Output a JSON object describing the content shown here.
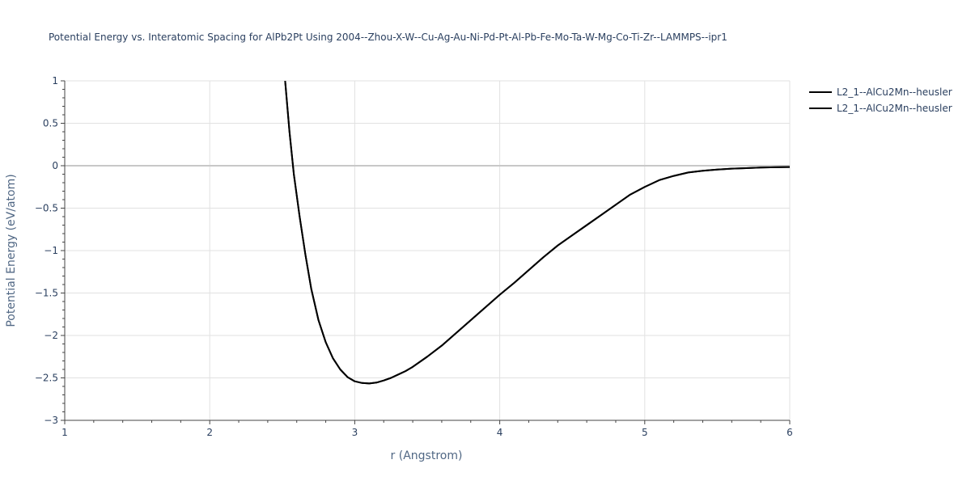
{
  "chart_data": {
    "type": "line",
    "title": "Potential Energy vs. Interatomic Spacing for AlPb2Pt Using 2004--Zhou-X-W--Cu-Ag-Au-Ni-Pd-Pt-Al-Pb-Fe-Mo-Ta-W-Mg-Co-Ti-Zr--LAMMPS--ipr1",
    "xlabel": "r (Angstrom)",
    "ylabel": "Potential Energy (eV/atom)",
    "xlim": [
      1,
      6
    ],
    "ylim": [
      -3,
      1
    ],
    "x_ticks": [
      1,
      2,
      3,
      4,
      5,
      6
    ],
    "x_tick_labels": [
      "1",
      "2",
      "3",
      "4",
      "5",
      "6"
    ],
    "y_ticks": [
      1,
      0.5,
      0,
      -0.5,
      -1,
      -1.5,
      -2,
      -2.5,
      -3
    ],
    "y_tick_labels": [
      "1",
      "0.5",
      "0",
      "−0.5",
      "−1",
      "−1.5",
      "−2",
      "−2.5",
      "−3"
    ],
    "grid": true,
    "legend_position": "top-right",
    "series": [
      {
        "name": "L2_1--AlCu2Mn--heusler",
        "color": "#000000",
        "x": [
          2.52,
          2.55,
          2.58,
          2.62,
          2.66,
          2.7,
          2.75,
          2.8,
          2.85,
          2.9,
          2.95,
          3.0,
          3.05,
          3.1,
          3.15,
          3.2,
          3.25,
          3.3,
          3.35,
          3.4,
          3.5,
          3.6,
          3.7,
          3.8,
          3.9,
          4.0,
          4.1,
          4.2,
          4.3,
          4.4,
          4.5,
          4.6,
          4.7,
          4.8,
          4.9,
          5.0,
          5.1,
          5.2,
          5.3,
          5.4,
          5.5,
          5.6,
          5.7,
          5.8,
          5.9,
          6.0
        ],
        "y": [
          1.0,
          0.4,
          -0.1,
          -0.6,
          -1.05,
          -1.45,
          -1.82,
          -2.08,
          -2.27,
          -2.4,
          -2.49,
          -2.54,
          -2.56,
          -2.565,
          -2.555,
          -2.53,
          -2.5,
          -2.46,
          -2.42,
          -2.37,
          -2.25,
          -2.12,
          -1.97,
          -1.82,
          -1.67,
          -1.52,
          -1.38,
          -1.23,
          -1.08,
          -0.94,
          -0.82,
          -0.7,
          -0.58,
          -0.46,
          -0.34,
          -0.25,
          -0.17,
          -0.12,
          -0.08,
          -0.06,
          -0.045,
          -0.035,
          -0.028,
          -0.022,
          -0.018,
          -0.015
        ]
      },
      {
        "name": "L2_1--AlCu2Mn--heusler",
        "color": "#000000",
        "x": [
          2.52,
          2.55,
          2.58,
          2.62,
          2.66,
          2.7,
          2.75,
          2.8,
          2.85,
          2.9,
          2.95,
          3.0,
          3.05,
          3.1,
          3.15,
          3.2,
          3.25,
          3.3,
          3.35,
          3.4,
          3.5,
          3.6,
          3.7,
          3.8,
          3.9,
          4.0,
          4.1,
          4.2,
          4.3,
          4.4,
          4.5,
          4.6,
          4.7,
          4.8,
          4.9,
          5.0,
          5.1,
          5.2,
          5.3,
          5.4,
          5.5,
          5.6,
          5.7,
          5.8,
          5.9,
          6.0
        ],
        "y": [
          1.0,
          0.4,
          -0.1,
          -0.6,
          -1.05,
          -1.45,
          -1.82,
          -2.08,
          -2.27,
          -2.4,
          -2.49,
          -2.54,
          -2.56,
          -2.565,
          -2.555,
          -2.53,
          -2.5,
          -2.46,
          -2.42,
          -2.37,
          -2.25,
          -2.12,
          -1.97,
          -1.82,
          -1.67,
          -1.52,
          -1.38,
          -1.23,
          -1.08,
          -0.94,
          -0.82,
          -0.7,
          -0.58,
          -0.46,
          -0.34,
          -0.25,
          -0.17,
          -0.12,
          -0.08,
          -0.06,
          -0.045,
          -0.035,
          -0.028,
          -0.022,
          -0.018,
          -0.015
        ]
      }
    ]
  }
}
